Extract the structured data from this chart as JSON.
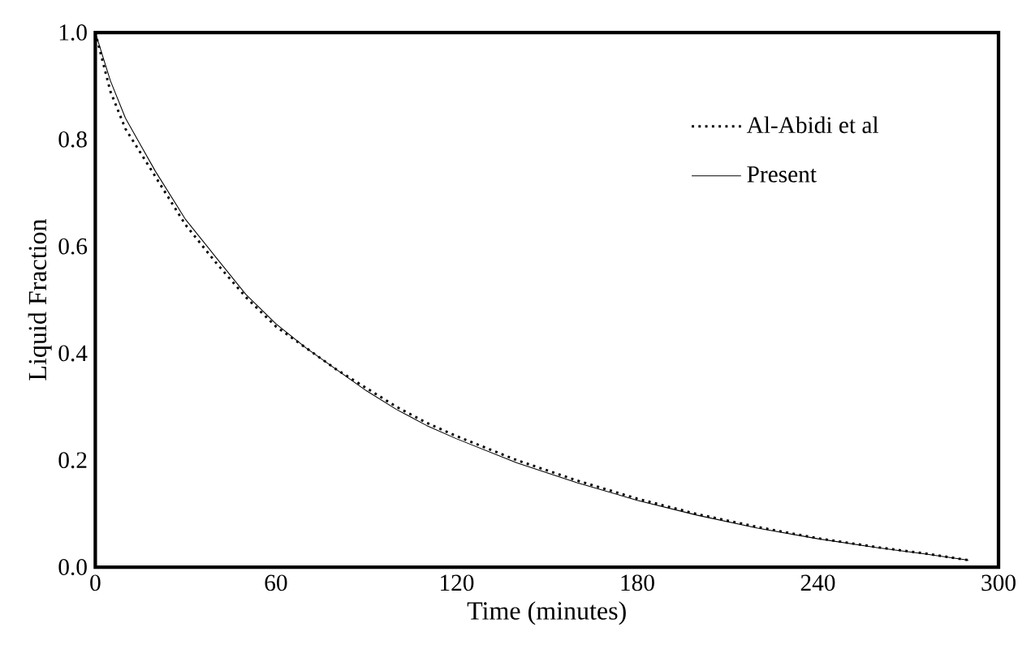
{
  "chart_data": {
    "type": "line",
    "xlabel": "Time (minutes)",
    "ylabel": "Liquid Fraction",
    "xlim": [
      0,
      300
    ],
    "xticks": [
      0,
      60,
      120,
      180,
      240,
      300
    ],
    "ylim": [
      0,
      1
    ],
    "yticks": [
      {
        "value": 0,
        "label": "0.0"
      },
      {
        "value": 0.2,
        "label": "0.2"
      },
      {
        "value": 0.4,
        "label": "0.4"
      },
      {
        "value": 0.6,
        "label": "0.6"
      },
      {
        "value": 0.8,
        "label": "0.8"
      },
      {
        "value": 1,
        "label": "1.0"
      }
    ],
    "grid": false,
    "legend": "top right",
    "series": [
      {
        "name": "Al-Abidi et al",
        "color": "#000000",
        "line_style": "dotted",
        "x": [
          0,
          5,
          10,
          15,
          20,
          30,
          40,
          50,
          60,
          70,
          80,
          90,
          100,
          110,
          120,
          140,
          160,
          180,
          200,
          220,
          240,
          260,
          275,
          290
        ],
        "values": [
          1.0,
          0.89,
          0.82,
          0.775,
          0.73,
          0.64,
          0.57,
          0.505,
          0.45,
          0.41,
          0.37,
          0.335,
          0.3,
          0.27,
          0.245,
          0.2,
          0.162,
          0.128,
          0.099,
          0.075,
          0.054,
          0.037,
          0.026,
          0.013
        ]
      },
      {
        "name": "Present",
        "color": "#000000",
        "line_style": "solid",
        "x": [
          0,
          5,
          10,
          15,
          20,
          30,
          40,
          50,
          60,
          70,
          80,
          90,
          100,
          110,
          120,
          140,
          160,
          180,
          200,
          220,
          240,
          260,
          275,
          290
        ],
        "values": [
          1.0,
          0.91,
          0.84,
          0.79,
          0.74,
          0.65,
          0.58,
          0.51,
          0.455,
          0.41,
          0.37,
          0.33,
          0.295,
          0.265,
          0.24,
          0.195,
          0.158,
          0.125,
          0.097,
          0.073,
          0.053,
          0.036,
          0.025,
          0.013
        ]
      }
    ]
  }
}
